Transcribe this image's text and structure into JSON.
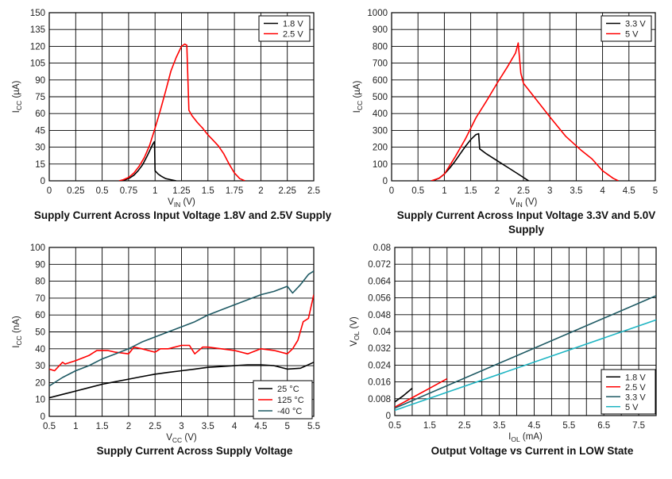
{
  "chart_data": [
    {
      "type": "line",
      "title": "Supply Current Across Input Voltage 1.8V and 2.5V Supply",
      "xlabel": "V",
      "xlabel_sub": "IN",
      "xlabel_unit": " (V)",
      "ylabel": "I",
      "ylabel_sub": "CC",
      "ylabel_unit": " (µA)",
      "xlim": [
        0,
        2.5
      ],
      "ylim": [
        0,
        150
      ],
      "xticks": [
        "0",
        "0.25",
        "0.5",
        "0.75",
        "1",
        "1.25",
        "1.5",
        "1.75",
        "2",
        "2.25",
        "2.5"
      ],
      "yticks": [
        "0",
        "15",
        "30",
        "45",
        "60",
        "75",
        "90",
        "105",
        "120",
        "135",
        "150"
      ],
      "grid": true,
      "legend": "top-right",
      "series": [
        {
          "name": "1.8 V",
          "color": "#000000",
          "x": [
            0.68,
            0.72,
            0.76,
            0.8,
            0.84,
            0.88,
            0.92,
            0.96,
            0.98,
            0.995,
            1.0,
            1.03,
            1.06,
            1.1,
            1.15,
            1.2
          ],
          "y": [
            0,
            1,
            2.5,
            5,
            9,
            14,
            21,
            29,
            33,
            35,
            9,
            6,
            4,
            2,
            1,
            0
          ]
        },
        {
          "name": "2.5 V",
          "color": "#ff0000",
          "x": [
            0.66,
            0.7,
            0.75,
            0.8,
            0.85,
            0.9,
            0.95,
            1.0,
            1.05,
            1.1,
            1.15,
            1.2,
            1.25,
            1.28,
            1.3,
            1.32,
            1.35,
            1.4,
            1.45,
            1.5,
            1.55,
            1.6,
            1.65,
            1.7,
            1.75,
            1.8,
            1.85
          ],
          "y": [
            0,
            1,
            3,
            7,
            13,
            21,
            32,
            47,
            63,
            80,
            98,
            110,
            120,
            122,
            121,
            63,
            58,
            52,
            47,
            41,
            36,
            31,
            24,
            15,
            7,
            2,
            0
          ]
        }
      ]
    },
    {
      "type": "line",
      "title": "Supply Current Across Input Voltage 3.3V and 5.0V Supply",
      "xlabel": "V",
      "xlabel_sub": "IN",
      "xlabel_unit": " (V)",
      "ylabel": "I",
      "ylabel_sub": "CC",
      "ylabel_unit": " (µA)",
      "xlim": [
        0,
        5
      ],
      "ylim": [
        0,
        1000
      ],
      "xticks": [
        "0",
        "0.5",
        "1",
        "1.5",
        "2",
        "2.5",
        "3",
        "3.5",
        "4",
        "4.5",
        "5"
      ],
      "yticks": [
        "0",
        "100",
        "200",
        "300",
        "400",
        "500",
        "600",
        "700",
        "800",
        "900",
        "1000"
      ],
      "grid": true,
      "legend": "top-right",
      "series": [
        {
          "name": "3.3 V",
          "color": "#000000",
          "x": [
            0.78,
            0.9,
            1.0,
            1.1,
            1.2,
            1.3,
            1.4,
            1.5,
            1.6,
            1.65,
            1.67,
            1.8,
            2.0,
            2.2,
            2.4,
            2.55,
            2.6
          ],
          "y": [
            0,
            15,
            40,
            75,
            115,
            160,
            205,
            245,
            275,
            280,
            190,
            160,
            120,
            80,
            40,
            10,
            0
          ]
        },
        {
          "name": "5 V",
          "color": "#ff0000",
          "x": [
            0.75,
            0.9,
            1.0,
            1.2,
            1.4,
            1.6,
            1.8,
            2.0,
            2.2,
            2.35,
            2.4,
            2.45,
            2.5,
            2.7,
            3.0,
            3.3,
            3.6,
            3.8,
            4.0,
            4.2,
            4.3
          ],
          "y": [
            0,
            15,
            40,
            140,
            250,
            375,
            475,
            580,
            680,
            760,
            820,
            640,
            580,
            500,
            380,
            265,
            180,
            130,
            60,
            15,
            0
          ]
        }
      ]
    },
    {
      "type": "line",
      "title": "Supply Current Across Supply Voltage",
      "xlabel": "V",
      "xlabel_sub": "CC",
      "xlabel_unit": " (V)",
      "ylabel": "I",
      "ylabel_sub": "CC",
      "ylabel_unit": " (nA)",
      "xlim": [
        0.5,
        5.5
      ],
      "ylim": [
        0,
        100
      ],
      "xticks": [
        "0.5",
        "1",
        "1.5",
        "2",
        "2.5",
        "3",
        "3.5",
        "4",
        "4.5",
        "5",
        "5.5"
      ],
      "yticks": [
        "0",
        "10",
        "20",
        "30",
        "40",
        "50",
        "60",
        "70",
        "80",
        "90",
        "100"
      ],
      "grid": true,
      "legend": "bottom-right",
      "series": [
        {
          "name": "25 °C",
          "color": "#000000",
          "x": [
            0.5,
            0.75,
            1.0,
            1.25,
            1.5,
            1.75,
            2.0,
            2.25,
            2.5,
            2.75,
            3.0,
            3.25,
            3.5,
            3.75,
            4.0,
            4.25,
            4.5,
            4.75,
            5.0,
            5.25,
            5.5
          ],
          "y": [
            11,
            13,
            15,
            17,
            19,
            20.5,
            22,
            23.5,
            25,
            26,
            27,
            28,
            29,
            29.5,
            30,
            30.5,
            30.5,
            30,
            28,
            28.5,
            32
          ]
        },
        {
          "name": "125 °C",
          "color": "#ff0000",
          "x": [
            0.5,
            0.6,
            0.75,
            0.8,
            1.0,
            1.25,
            1.4,
            1.6,
            1.75,
            2.0,
            2.1,
            2.25,
            2.5,
            2.6,
            2.75,
            3.0,
            3.15,
            3.25,
            3.4,
            3.5,
            3.75,
            4.0,
            4.25,
            4.5,
            4.75,
            5.0,
            5.1,
            5.2,
            5.3,
            5.4,
            5.5
          ],
          "y": [
            28,
            27,
            32,
            31,
            33,
            36,
            39,
            39,
            38,
            37,
            41,
            40,
            38,
            40,
            40,
            42,
            42,
            37,
            41,
            41,
            40,
            39,
            37,
            40,
            39,
            37,
            40,
            45,
            56,
            58,
            72
          ]
        },
        {
          "name": "-40 °C",
          "color": "#1f5a64",
          "x": [
            0.5,
            0.75,
            1.0,
            1.25,
            1.5,
            1.75,
            2.0,
            2.25,
            2.5,
            2.75,
            3.0,
            3.25,
            3.5,
            3.75,
            4.0,
            4.25,
            4.5,
            4.75,
            5.0,
            5.1,
            5.25,
            5.4,
            5.5
          ],
          "y": [
            18,
            23,
            27,
            30,
            34,
            37,
            40,
            44,
            47,
            50,
            53,
            56,
            60,
            63,
            66,
            69,
            72,
            74,
            77,
            73,
            78,
            84,
            86
          ]
        }
      ]
    },
    {
      "type": "line",
      "title": "Output Voltage vs Current in LOW State",
      "xlabel": "I",
      "xlabel_sub": "OL",
      "xlabel_unit": " (mA)",
      "ylabel": "V",
      "ylabel_sub": "OL",
      "ylabel_unit": " (V)",
      "xlim": [
        0.5,
        8
      ],
      "ylim": [
        0,
        0.08
      ],
      "xticks": [
        "0.5",
        "1.5",
        "2.5",
        "3.5",
        "4.5",
        "5.5",
        "6.5",
        "7.5"
      ],
      "yticks": [
        "0",
        "0.008",
        "0.016",
        "0.024",
        "0.032",
        "0.04",
        "0.048",
        "0.056",
        "0.064",
        "0.072",
        "0.08"
      ],
      "grid": true,
      "legend": "bottom-right",
      "series": [
        {
          "name": "1.8 V",
          "color": "#000000",
          "x": [
            0.5,
            0.75,
            1.0
          ],
          "y": [
            0.0065,
            0.0095,
            0.013
          ]
        },
        {
          "name": "2.5 V",
          "color": "#ff0000",
          "x": [
            0.5,
            1.0,
            1.5,
            2.0
          ],
          "y": [
            0.004,
            0.0085,
            0.013,
            0.0175
          ]
        },
        {
          "name": "3.3 V",
          "color": "#1f5a64",
          "x": [
            0.5,
            8.0
          ],
          "y": [
            0.0035,
            0.057
          ]
        },
        {
          "name": "5 V",
          "color": "#1fb5c3",
          "x": [
            0.5,
            8.0
          ],
          "y": [
            0.0025,
            0.0455
          ]
        }
      ]
    }
  ]
}
